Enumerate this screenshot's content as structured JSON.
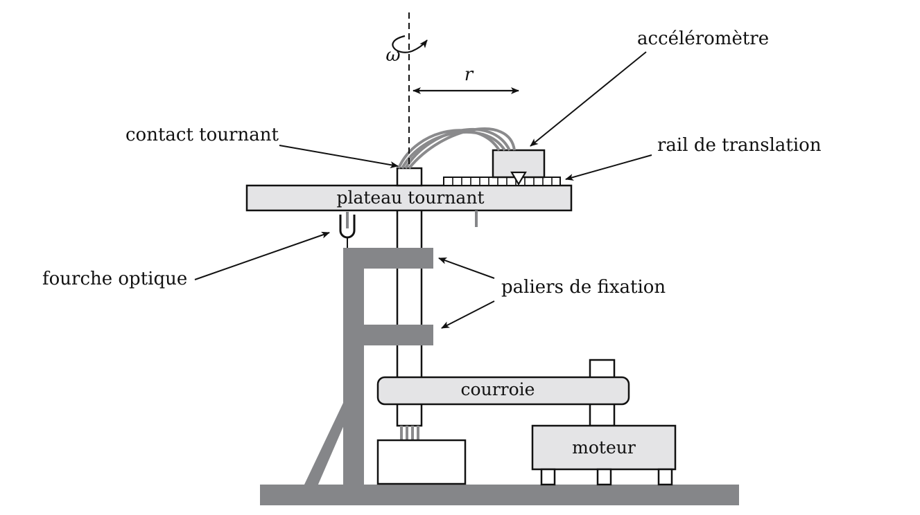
{
  "labels": {
    "omega": "ω",
    "radius": "r",
    "accelerometer": "accéléromètre",
    "rotating_contact": "contact tournant",
    "translation_rail": "rail de translation",
    "turntable": "plateau tournant",
    "optical_fork": "fourche optique",
    "mounting_bearings": "paliers de fixation",
    "belt": "courroie",
    "motor": "moteur"
  },
  "colors": {
    "stroke": "#111111",
    "gray_structure": "#858689",
    "light_fill": "#e4e4e6",
    "cable": "#8a8a8c"
  }
}
